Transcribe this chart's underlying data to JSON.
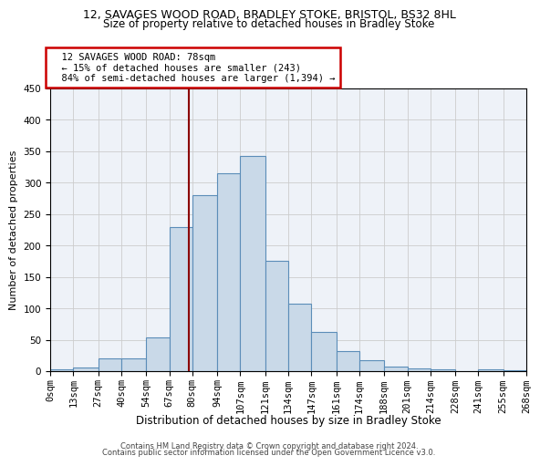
{
  "title1": "12, SAVAGES WOOD ROAD, BRADLEY STOKE, BRISTOL, BS32 8HL",
  "title2": "Size of property relative to detached houses in Bradley Stoke",
  "xlabel": "Distribution of detached houses by size in Bradley Stoke",
  "ylabel": "Number of detached properties",
  "footer1": "Contains HM Land Registry data © Crown copyright and database right 2024.",
  "footer2": "Contains public sector information licensed under the Open Government Licence v3.0.",
  "annotation_title": "12 SAVAGES WOOD ROAD: 78sqm",
  "annotation_line1": "← 15% of detached houses are smaller (243)",
  "annotation_line2": "84% of semi-detached houses are larger (1,394) →",
  "property_size": 78,
  "bar_color": "#c9d9e8",
  "bar_edge_color": "#5b8db8",
  "vline_color": "#8b0000",
  "annotation_box_edge_color": "#cc0000",
  "grid_color": "#cccccc",
  "background_color": "#eef2f8",
  "bins": [
    0,
    13,
    27,
    40,
    54,
    67,
    80,
    94,
    107,
    121,
    134,
    147,
    161,
    174,
    188,
    201,
    214,
    228,
    241,
    255,
    268
  ],
  "counts": [
    3,
    6,
    20,
    20,
    54,
    230,
    280,
    315,
    342,
    176,
    108,
    63,
    32,
    17,
    7,
    5,
    3,
    0,
    3,
    2
  ],
  "ylim": [
    0,
    450
  ],
  "yticks": [
    0,
    50,
    100,
    150,
    200,
    250,
    300,
    350,
    400,
    450
  ],
  "xlim": [
    0,
    268
  ],
  "title1_fontsize": 9,
  "title2_fontsize": 8.5,
  "ylabel_fontsize": 8,
  "xlabel_fontsize": 8.5,
  "tick_fontsize": 7.5,
  "annotation_fontsize": 7.5,
  "footer_fontsize": 6
}
